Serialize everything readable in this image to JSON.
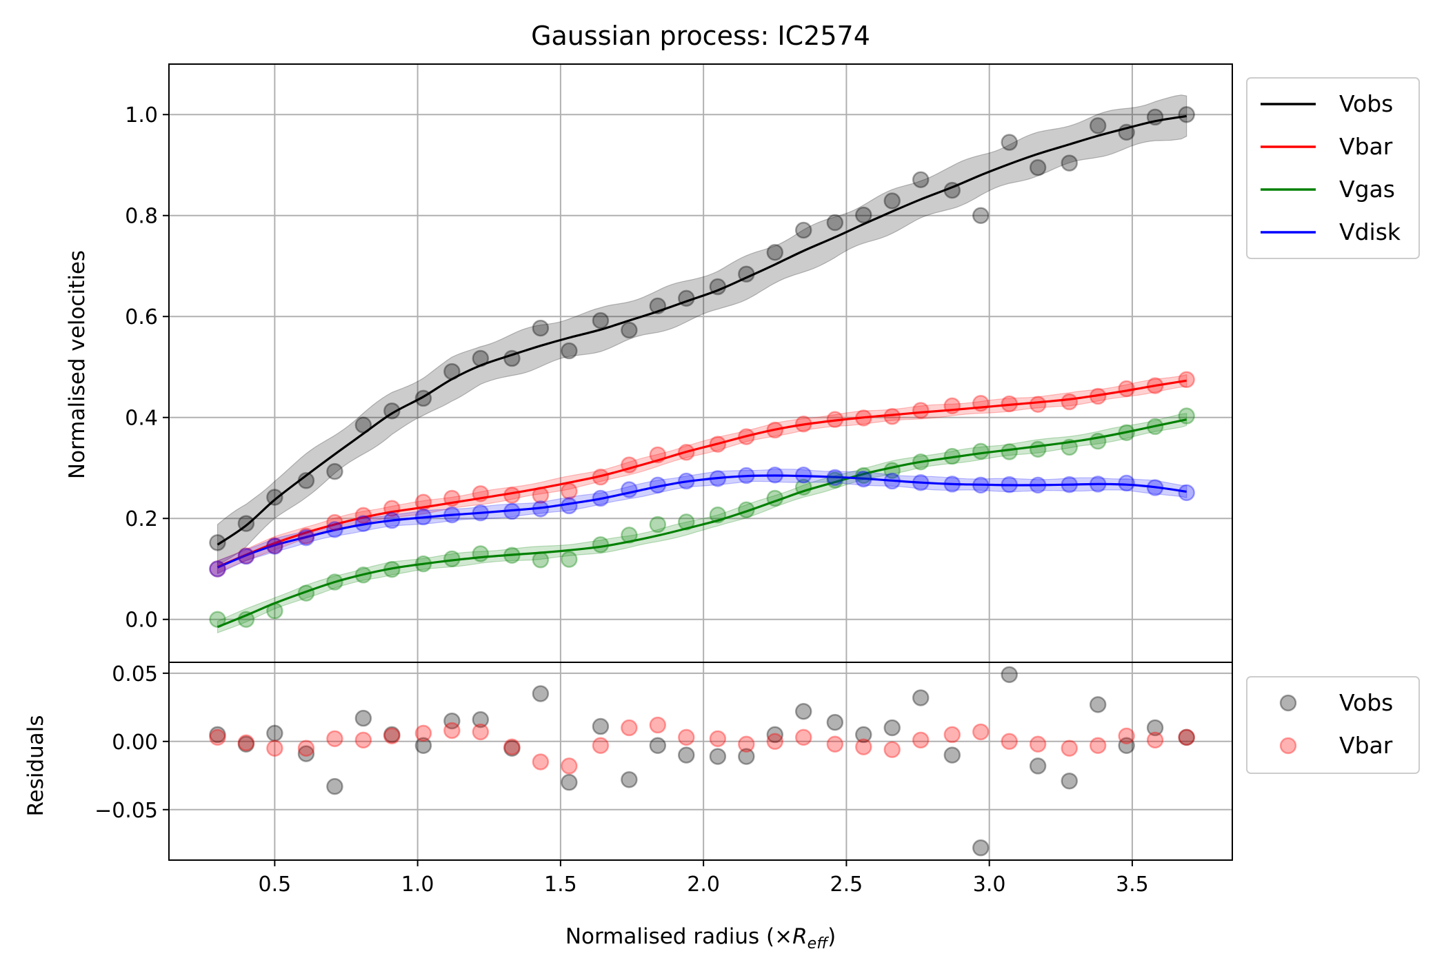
{
  "chart_data": [
    {
      "type": "line",
      "title": "Gaussian process: IC2574",
      "xlabel": "",
      "ylabel": "Normalised velocities",
      "xlim": [
        0.13,
        3.85
      ],
      "ylim": [
        -0.085,
        1.1
      ],
      "yticks": [
        0.0,
        0.2,
        0.4,
        0.6,
        0.8,
        1.0
      ],
      "ytick_labels": [
        "0.0",
        "0.2",
        "0.4",
        "0.6",
        "0.8",
        "1.0"
      ],
      "grid": true,
      "legend_position": "outside-top-right",
      "x": [
        0.3,
        0.4,
        0.5,
        0.61,
        0.71,
        0.81,
        0.91,
        1.02,
        1.12,
        1.22,
        1.33,
        1.43,
        1.53,
        1.64,
        1.74,
        1.84,
        1.94,
        2.05,
        2.15,
        2.25,
        2.35,
        2.46,
        2.56,
        2.66,
        2.76,
        2.87,
        2.97,
        3.07,
        3.17,
        3.28,
        3.38,
        3.48,
        3.58,
        3.69
      ],
      "series": [
        {
          "name": "Vobs",
          "color": "#000000",
          "band_halfwidth": 0.04,
          "points": [
            0.152,
            0.19,
            0.242,
            0.275,
            0.293,
            0.385,
            0.413,
            0.438,
            0.491,
            0.517,
            0.517,
            0.577,
            0.532,
            0.592,
            0.573,
            0.621,
            0.636,
            0.659,
            0.684,
            0.727,
            0.771,
            0.786,
            0.801,
            0.829,
            0.871,
            0.85,
            0.8,
            0.945,
            0.895,
            0.904,
            0.978,
            0.965,
            0.995,
            1.0
          ],
          "fit": [
            0.148,
            0.186,
            0.237,
            0.285,
            0.327,
            0.368,
            0.408,
            0.441,
            0.476,
            0.503,
            0.524,
            0.542,
            0.558,
            0.574,
            0.592,
            0.61,
            0.63,
            0.652,
            0.677,
            0.703,
            0.73,
            0.757,
            0.783,
            0.808,
            0.832,
            0.856,
            0.88,
            0.902,
            0.922,
            0.941,
            0.958,
            0.973,
            0.987,
            0.997
          ]
        },
        {
          "name": "Vbar",
          "color": "#ff0000",
          "band_halfwidth": 0.012,
          "points": [
            0.1,
            0.126,
            0.146,
            0.165,
            0.192,
            0.206,
            0.22,
            0.232,
            0.24,
            0.249,
            0.246,
            0.246,
            0.254,
            0.282,
            0.306,
            0.326,
            0.331,
            0.347,
            0.362,
            0.375,
            0.387,
            0.396,
            0.399,
            0.402,
            0.414,
            0.423,
            0.428,
            0.427,
            0.426,
            0.431,
            0.442,
            0.457,
            0.463,
            0.475
          ],
          "fit": [
            0.104,
            0.128,
            0.151,
            0.172,
            0.188,
            0.202,
            0.213,
            0.222,
            0.231,
            0.24,
            0.25,
            0.26,
            0.271,
            0.284,
            0.299,
            0.315,
            0.332,
            0.348,
            0.363,
            0.376,
            0.386,
            0.394,
            0.4,
            0.405,
            0.41,
            0.415,
            0.42,
            0.425,
            0.43,
            0.436,
            0.444,
            0.453,
            0.463,
            0.473
          ]
        },
        {
          "name": "Vgas",
          "color": "#008000",
          "band_halfwidth": 0.012,
          "points": [
            0.0,
            0.0,
            0.017,
            0.052,
            0.074,
            0.088,
            0.099,
            0.11,
            0.12,
            0.13,
            0.127,
            0.118,
            0.119,
            0.148,
            0.167,
            0.188,
            0.193,
            0.207,
            0.217,
            0.24,
            0.262,
            0.276,
            0.285,
            0.295,
            0.312,
            0.323,
            0.333,
            0.332,
            0.337,
            0.341,
            0.353,
            0.37,
            0.382,
            0.403
          ],
          "fit": [
            -0.015,
            0.008,
            0.032,
            0.055,
            0.074,
            0.089,
            0.101,
            0.11,
            0.117,
            0.123,
            0.128,
            0.132,
            0.137,
            0.144,
            0.154,
            0.166,
            0.18,
            0.196,
            0.214,
            0.234,
            0.254,
            0.272,
            0.288,
            0.301,
            0.312,
            0.321,
            0.329,
            0.336,
            0.343,
            0.351,
            0.36,
            0.371,
            0.383,
            0.396
          ]
        },
        {
          "name": "Vdisk",
          "color": "#0000ff",
          "band_halfwidth": 0.012,
          "points": [
            0.1,
            0.125,
            0.145,
            0.162,
            0.178,
            0.19,
            0.196,
            0.203,
            0.207,
            0.211,
            0.214,
            0.219,
            0.225,
            0.24,
            0.257,
            0.266,
            0.274,
            0.279,
            0.285,
            0.286,
            0.286,
            0.281,
            0.278,
            0.274,
            0.271,
            0.268,
            0.266,
            0.267,
            0.266,
            0.267,
            0.268,
            0.27,
            0.261,
            0.251
          ],
          "fit": [
            0.103,
            0.127,
            0.147,
            0.163,
            0.177,
            0.188,
            0.196,
            0.202,
            0.207,
            0.211,
            0.216,
            0.221,
            0.229,
            0.239,
            0.251,
            0.263,
            0.273,
            0.28,
            0.284,
            0.285,
            0.284,
            0.282,
            0.279,
            0.275,
            0.271,
            0.268,
            0.267,
            0.266,
            0.266,
            0.267,
            0.268,
            0.267,
            0.262,
            0.253
          ]
        }
      ]
    },
    {
      "type": "scatter",
      "title": "",
      "xlabel": "Normalised radius (×",
      "xlabel_math": "R",
      "xlabel_sub": "eff",
      "xlabel_close": ")",
      "ylabel": "Residuals",
      "xlim": [
        0.13,
        3.85
      ],
      "ylim": [
        -0.087,
        0.058
      ],
      "xticks": [
        0.5,
        1.0,
        1.5,
        2.0,
        2.5,
        3.0,
        3.5
      ],
      "xtick_labels": [
        "0.5",
        "1.0",
        "1.5",
        "2.0",
        "2.5",
        "3.0",
        "3.5"
      ],
      "yticks": [
        -0.05,
        0.0,
        0.05
      ],
      "ytick_labels": [
        "−0.05",
        "0.00",
        "0.05"
      ],
      "grid": true,
      "legend_position": "outside-right",
      "x": [
        0.3,
        0.4,
        0.5,
        0.61,
        0.71,
        0.81,
        0.91,
        1.02,
        1.12,
        1.22,
        1.33,
        1.43,
        1.53,
        1.64,
        1.74,
        1.84,
        1.94,
        2.05,
        2.15,
        2.25,
        2.35,
        2.46,
        2.56,
        2.66,
        2.76,
        2.87,
        2.97,
        3.07,
        3.17,
        3.28,
        3.38,
        3.48,
        3.58,
        3.69
      ],
      "series": [
        {
          "name": "Vobs",
          "color": "#000000",
          "values": [
            0.005,
            -0.002,
            0.006,
            -0.009,
            -0.033,
            0.017,
            0.005,
            -0.003,
            0.015,
            0.016,
            -0.005,
            0.035,
            -0.03,
            0.011,
            -0.028,
            -0.003,
            -0.01,
            -0.011,
            -0.011,
            0.005,
            0.022,
            0.014,
            0.005,
            0.01,
            0.032,
            -0.01,
            -0.078,
            0.049,
            -0.018,
            -0.029,
            0.027,
            -0.003,
            0.01,
            0.003
          ]
        },
        {
          "name": "Vbar",
          "color": "#ff0000",
          "values": [
            0.003,
            -0.001,
            -0.005,
            -0.005,
            0.002,
            0.001,
            0.004,
            0.006,
            0.008,
            0.007,
            -0.004,
            -0.015,
            -0.018,
            -0.003,
            0.01,
            0.012,
            0.003,
            0.002,
            -0.002,
            0.0,
            0.003,
            -0.002,
            -0.004,
            -0.006,
            0.001,
            0.005,
            0.007,
            0.0,
            -0.002,
            -0.005,
            -0.003,
            0.004,
            0.001,
            0.003
          ]
        }
      ]
    }
  ]
}
